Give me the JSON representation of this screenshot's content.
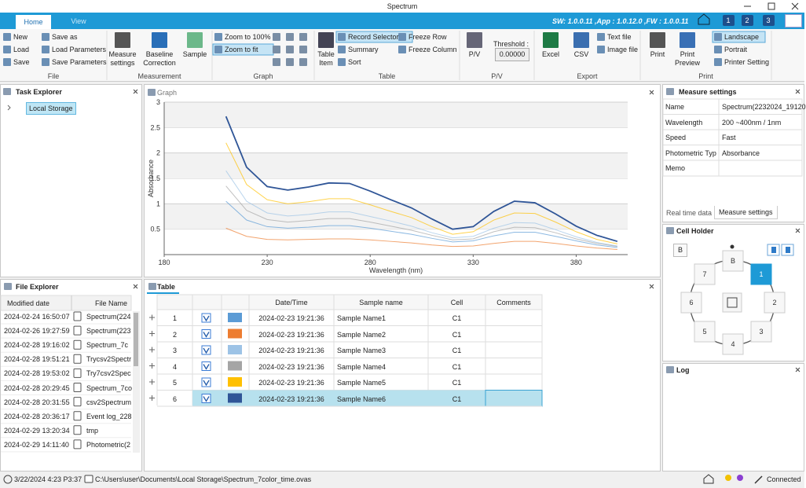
{
  "window": {
    "title": "Spectrum"
  },
  "tabs": [
    "Home",
    "View"
  ],
  "version": "SW: 1.0.0.11 ,App : 1.0.12.0 ,FW : 1.0.0.11",
  "badges": [
    "1",
    "2",
    "3"
  ],
  "ribbon": {
    "file": {
      "label": "File",
      "items": [
        "New",
        "Save as",
        "Load",
        "Load Parameters",
        "Save",
        "Save Parameters"
      ]
    },
    "measurement": {
      "label": "Measurement",
      "items": [
        "Measure settings",
        "Baseline Correction",
        "Sample"
      ]
    },
    "graph": {
      "label": "Graph",
      "items": [
        "Zoom to 100%",
        "Zoom to fit"
      ]
    },
    "table": {
      "label": "Table",
      "items": [
        "Table Item",
        "Record Selector",
        "Summary",
        "Sort",
        "Freeze Row",
        "Freeze Column"
      ]
    },
    "pv": {
      "label": "P/V",
      "button": "P/V",
      "threshold_label": "Threshold :",
      "threshold": "0.00000"
    },
    "export": {
      "label": "Export",
      "items": [
        "Excel",
        "CSV",
        "Text file",
        "Image file"
      ]
    },
    "print": {
      "label": "Print",
      "items": [
        "Print",
        "Print Preview",
        "Landscape",
        "Portrait",
        "Printer Setting"
      ]
    }
  },
  "task_explorer": {
    "title": "Task Explorer",
    "items": [
      "Local Storage"
    ]
  },
  "file_explorer": {
    "title": "File Explorer",
    "columns": [
      "Modified date",
      "File Name"
    ],
    "rows": [
      [
        "2024-02-24 16:50:07",
        "Spectrum(224"
      ],
      [
        "2024-02-26 19:27:59",
        "Spectrum(223"
      ],
      [
        "2024-02-28 19:16:02",
        "Spectrum_7c"
      ],
      [
        "2024-02-28 19:51:21",
        "Trycsv2Spectr"
      ],
      [
        "2024-02-28 19:53:02",
        "Try7csv2Spec"
      ],
      [
        "2024-02-28 20:29:45",
        "Spectrum_7co"
      ],
      [
        "2024-02-28 20:31:55",
        "csv2Spectrum"
      ],
      [
        "2024-02-28 20:36:17",
        "Event log_228"
      ],
      [
        "2024-02-29 13:20:34",
        "tmp"
      ],
      [
        "2024-02-29 14:11:40",
        "Photometric(2"
      ]
    ]
  },
  "graph_panel": {
    "title": "Graph",
    "chart_data": {
      "type": "line",
      "y_label": "Absorbance",
      "x_label": "Wavelength (nm)",
      "xlim": [
        180,
        405
      ],
      "xticks": [
        180,
        230,
        280,
        330,
        380
      ],
      "ylim": [
        0,
        3
      ],
      "yticks": [
        0.5,
        1,
        1.5,
        2,
        2.5,
        3
      ],
      "grid": true,
      "x": [
        210,
        220,
        230,
        240,
        250,
        260,
        270,
        280,
        290,
        300,
        310,
        320,
        330,
        340,
        350,
        360,
        370,
        380,
        390,
        400
      ],
      "series": [
        {
          "color": "#5b9bd5",
          "values": [
            1.05,
            0.68,
            0.55,
            0.52,
            0.54,
            0.57,
            0.57,
            0.52,
            0.46,
            0.4,
            0.32,
            0.25,
            0.27,
            0.37,
            0.44,
            0.44,
            0.36,
            0.27,
            0.19,
            0.14
          ]
        },
        {
          "color": "#ed7d31",
          "values": [
            0.52,
            0.36,
            0.3,
            0.29,
            0.3,
            0.31,
            0.31,
            0.29,
            0.26,
            0.23,
            0.19,
            0.16,
            0.17,
            0.22,
            0.26,
            0.26,
            0.22,
            0.17,
            0.13,
            0.1
          ]
        },
        {
          "color": "#9dc3e6",
          "values": [
            1.65,
            1.05,
            0.82,
            0.76,
            0.79,
            0.84,
            0.84,
            0.75,
            0.66,
            0.56,
            0.43,
            0.33,
            0.36,
            0.52,
            0.63,
            0.62,
            0.49,
            0.35,
            0.24,
            0.17
          ]
        },
        {
          "color": "#a5a5a5",
          "values": [
            1.35,
            0.87,
            0.69,
            0.64,
            0.67,
            0.71,
            0.71,
            0.64,
            0.56,
            0.48,
            0.38,
            0.29,
            0.31,
            0.45,
            0.54,
            0.53,
            0.43,
            0.31,
            0.22,
            0.16
          ]
        },
        {
          "color": "#ffc000",
          "values": [
            2.2,
            1.38,
            1.08,
            1.0,
            1.04,
            1.1,
            1.1,
            0.98,
            0.85,
            0.73,
            0.55,
            0.4,
            0.45,
            0.68,
            0.82,
            0.81,
            0.64,
            0.45,
            0.3,
            0.21
          ]
        },
        {
          "color": "#2f5597",
          "values": [
            2.72,
            1.72,
            1.34,
            1.27,
            1.33,
            1.41,
            1.4,
            1.25,
            1.08,
            0.92,
            0.7,
            0.5,
            0.55,
            0.85,
            1.05,
            1.02,
            0.8,
            0.56,
            0.38,
            0.26
          ]
        }
      ]
    }
  },
  "table_panel": {
    "title": "Table",
    "columns": [
      "Date/Time",
      "Sample name",
      "Cell",
      "Comments"
    ],
    "rows": [
      [
        "1",
        "2024-02-23 19:21:36",
        "Sample Name1",
        "C1"
      ],
      [
        "2",
        "2024-02-23 19:21:36",
        "Sample Name2",
        "C1"
      ],
      [
        "3",
        "2024-02-23 19:21:36",
        "Sample Name3",
        "C1"
      ],
      [
        "4",
        "2024-02-23 19:21:36",
        "Sample Name4",
        "C1"
      ],
      [
        "5",
        "2024-02-23 19:21:36",
        "Sample Name5",
        "C1"
      ],
      [
        "6",
        "2024-02-23 19:21:36",
        "Sample Name6",
        "C1"
      ]
    ]
  },
  "measure_settings": {
    "title": "Measure settings",
    "rows": [
      {
        "label": "Name",
        "value": "Spectrum(2232024_19120"
      },
      {
        "label": "Wavelength",
        "value": "200 ~400nm / 1nm"
      },
      {
        "label": "Speed",
        "value": "Fast"
      },
      {
        "label": "Photometric Typ",
        "value": "Absorbance"
      },
      {
        "label": "Memo"
      }
    ],
    "tabs": [
      "Real time data",
      "Measure settings"
    ]
  },
  "cell_holder": {
    "title": "Cell Holder",
    "button": "B",
    "cells": [
      "B",
      "1",
      "2",
      "3",
      "4",
      "5",
      "6",
      "7"
    ]
  },
  "log": {
    "title": "Log"
  },
  "status": {
    "time": "3/22/2024 4:23 P3:37",
    "path": "C:\\Users\\user\\Documents\\Local Storage\\Spectrum_7color_time.ovas",
    "connection": "Connected"
  }
}
